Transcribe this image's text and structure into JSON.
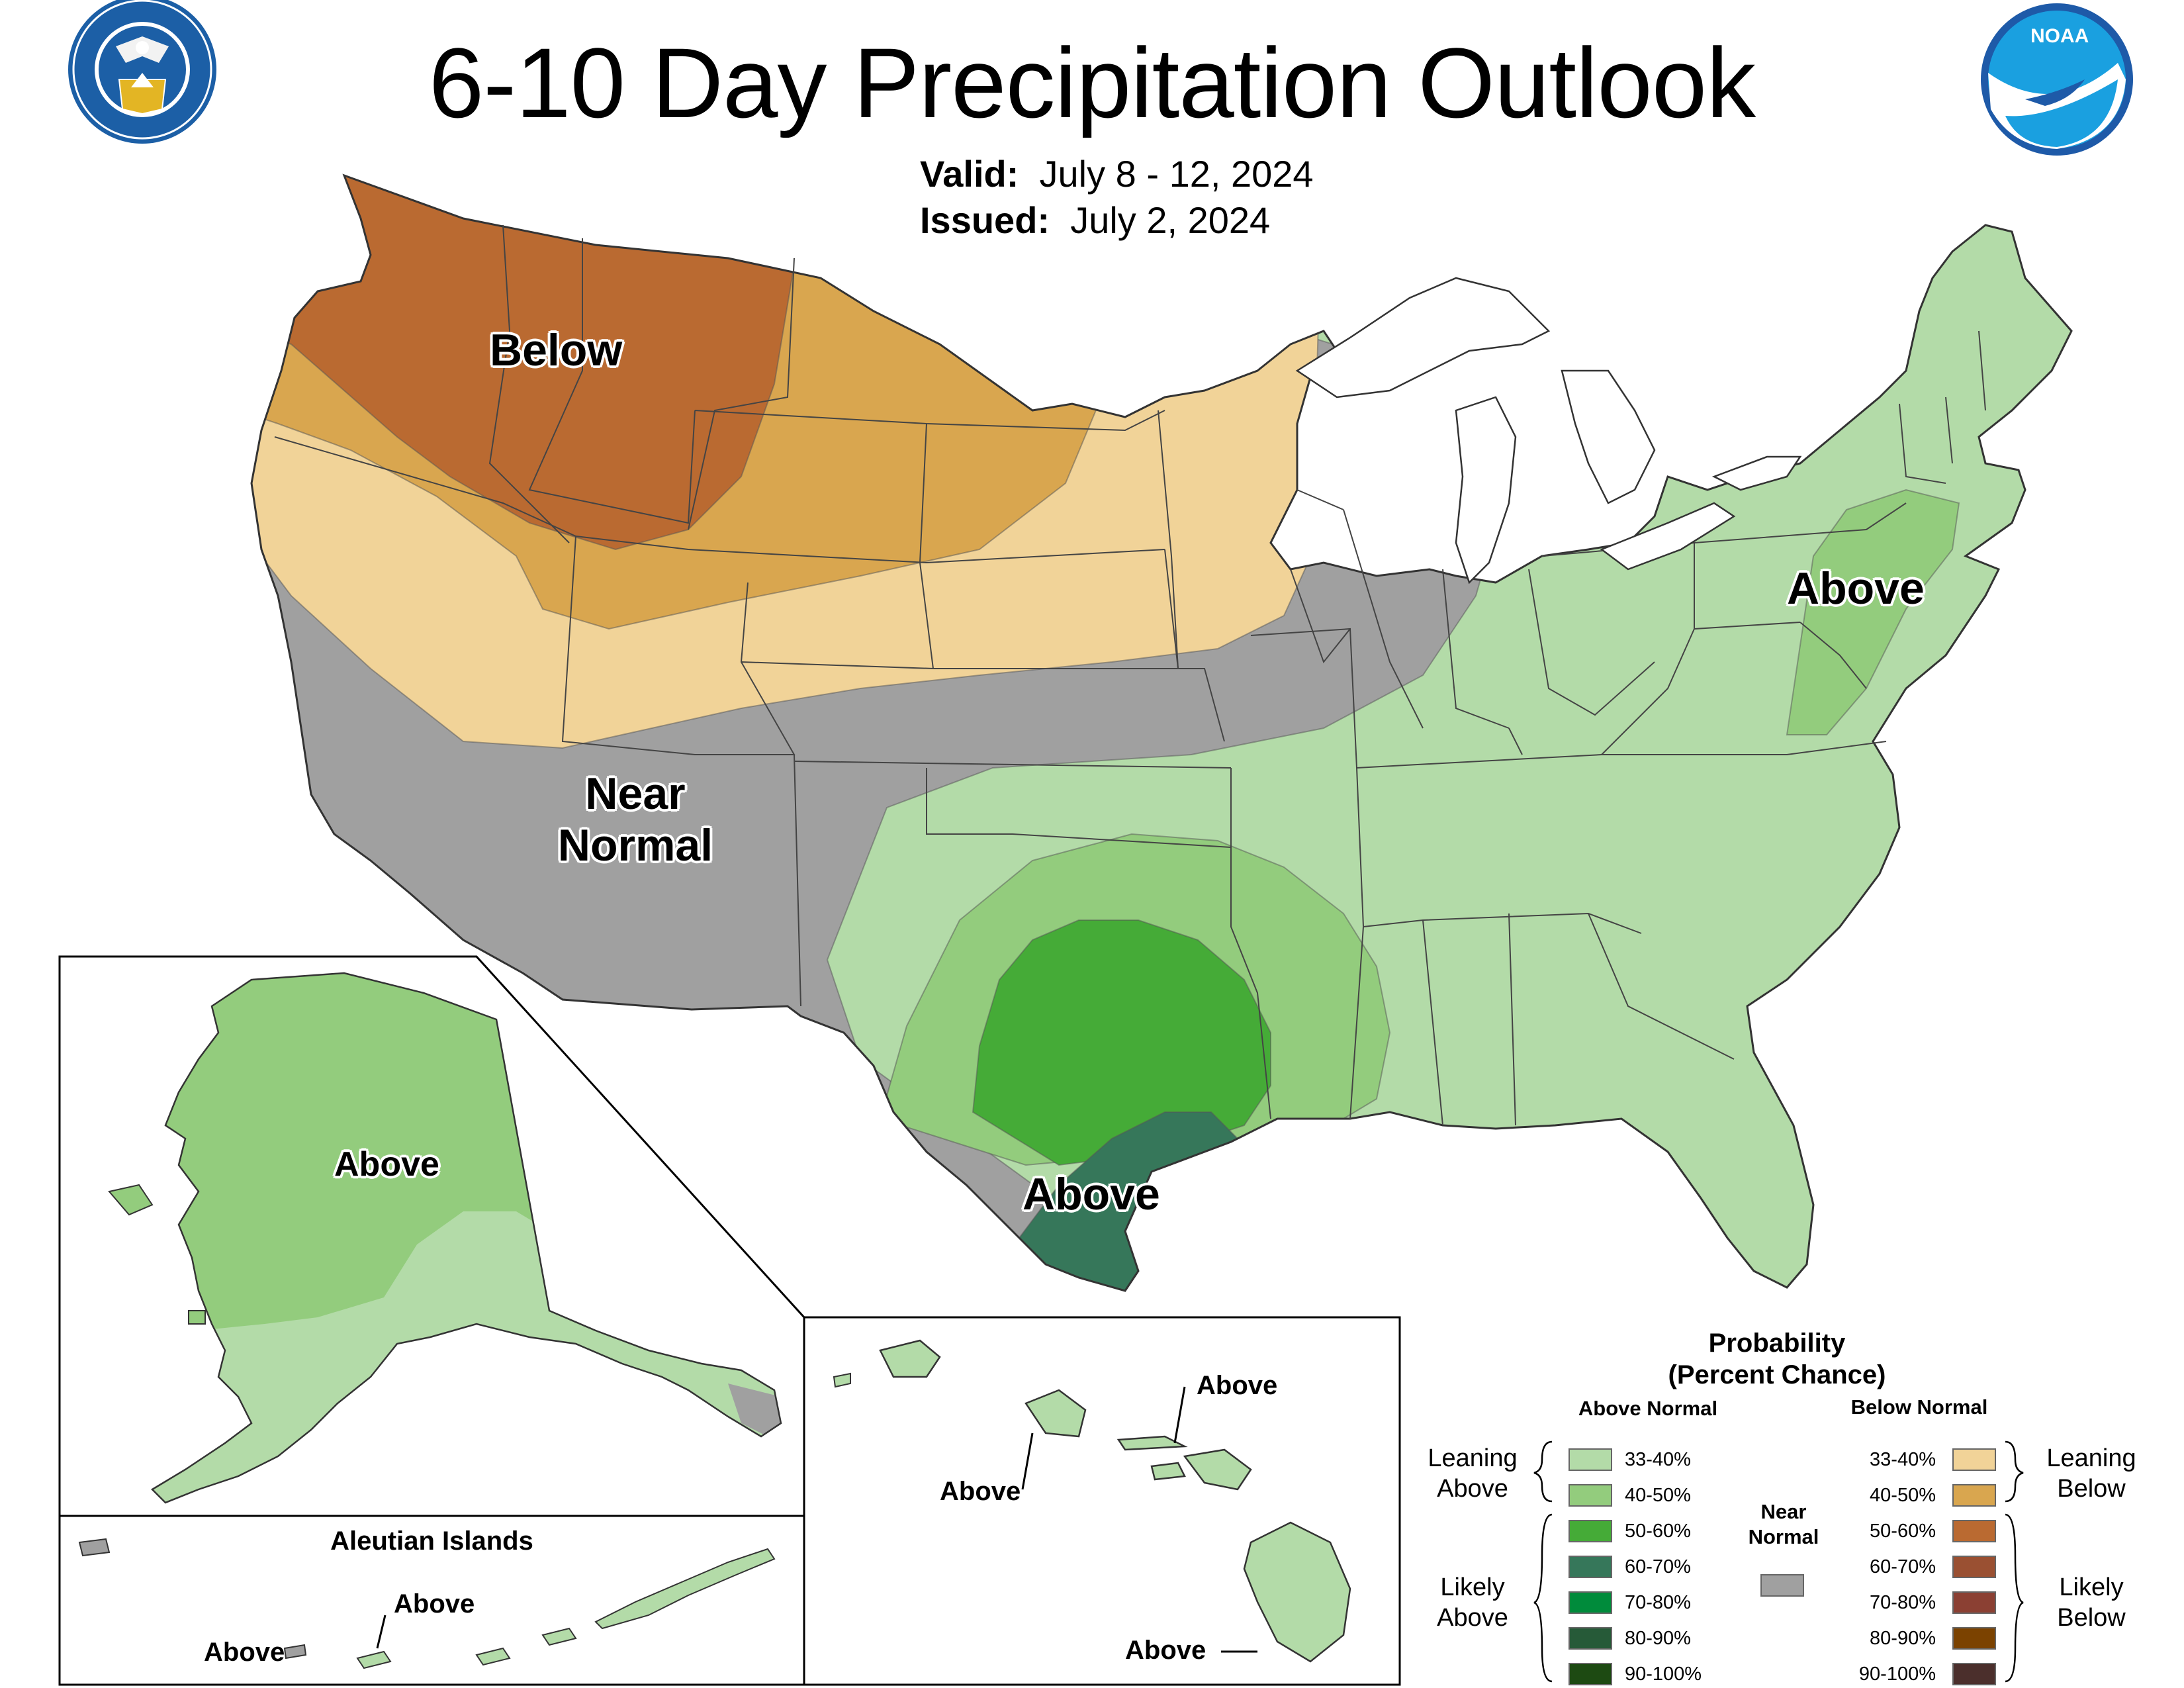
{
  "title": "6-10 Day Precipitation Outlook",
  "valid": {
    "label": "Valid:",
    "value": "July 8 - 12, 2024"
  },
  "issued": {
    "label": "Issued:",
    "value": "July 2, 2024"
  },
  "logos": {
    "left": {
      "name": "department-of-commerce-seal",
      "ring_text": "DEPARTMENT OF COMMERCE · UNITED STATES OF AMERICA"
    },
    "right": {
      "name": "noaa-logo",
      "text": "NOAA"
    }
  },
  "regions": {
    "contiguous": [
      "Below",
      "Near Normal",
      "Above",
      "Above"
    ],
    "alaska": "Above",
    "aleutian_title": "Aleutian Islands",
    "aleutian": [
      "Above",
      "Above"
    ],
    "hawaii": [
      "Above",
      "Above",
      "Above"
    ]
  },
  "colors": {
    "above_33_40": "#b3dba8",
    "above_40_50": "#93cc7d",
    "above_50_60": "#45ab37",
    "above_60_70": "#36775a",
    "above_70_80": "#008b3b",
    "above_80_90": "#265a38",
    "above_90_100": "#1d4a12",
    "near_normal": "#a0a0a0",
    "below_33_40": "#f1d398",
    "below_40_50": "#d9a64f",
    "below_50_60": "#ba6a31",
    "below_60_70": "#9a5032",
    "below_70_80": "#8b4033",
    "below_80_90": "#7b4200",
    "below_90_100": "#4b2f2c"
  },
  "legend": {
    "title": "Probability",
    "subtitle": "(Percent Chance)",
    "above_header": "Above Normal",
    "below_header": "Below Normal",
    "near_header": "Near Normal",
    "leaning_above": "Leaning Above",
    "likely_above": "Likely Above",
    "leaning_below": "Leaning Below",
    "likely_below": "Likely Below",
    "ranges": [
      "33-40%",
      "40-50%",
      "50-60%",
      "60-70%",
      "70-80%",
      "80-90%",
      "90-100%"
    ]
  }
}
